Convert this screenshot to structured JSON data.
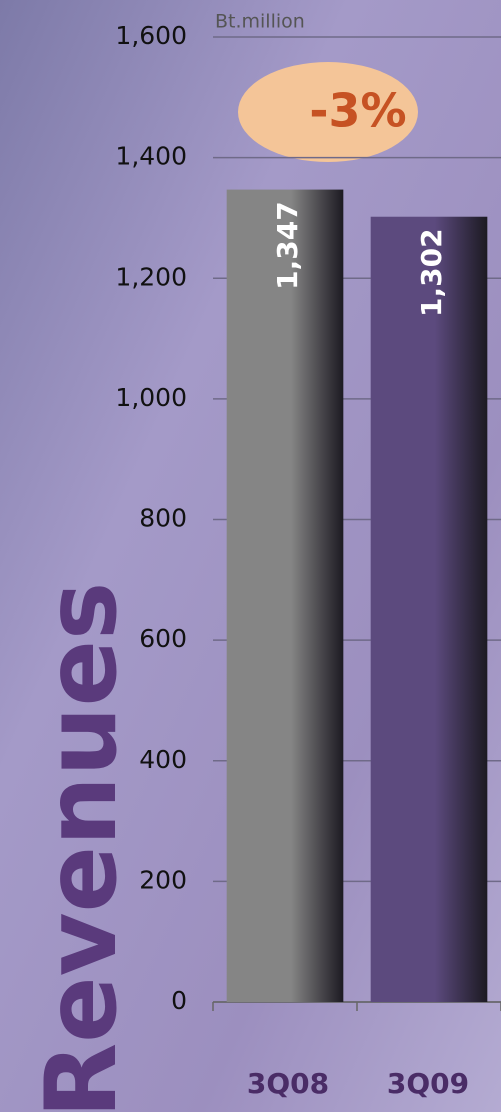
{
  "chart_data": {
    "type": "bar",
    "title": "Revenues",
    "y_label": "Bt.million",
    "annotation": "-3%",
    "categories": [
      "3Q08",
      "3Q09"
    ],
    "values": [
      1347,
      1302
    ],
    "value_labels": [
      "1,347",
      "1,302"
    ],
    "colors": [
      "#858585",
      "#5c4a7e"
    ],
    "ylim": [
      0,
      1600
    ],
    "yticks": [
      0,
      200,
      400,
      600,
      800,
      {
        "value": 1000,
        "label": "1,000"
      },
      {
        "value": 1200,
        "label": "1,200"
      },
      {
        "value": 1400,
        "label": "1,400"
      },
      {
        "value": 1600,
        "label": "1,600"
      }
    ],
    "grid": true
  }
}
